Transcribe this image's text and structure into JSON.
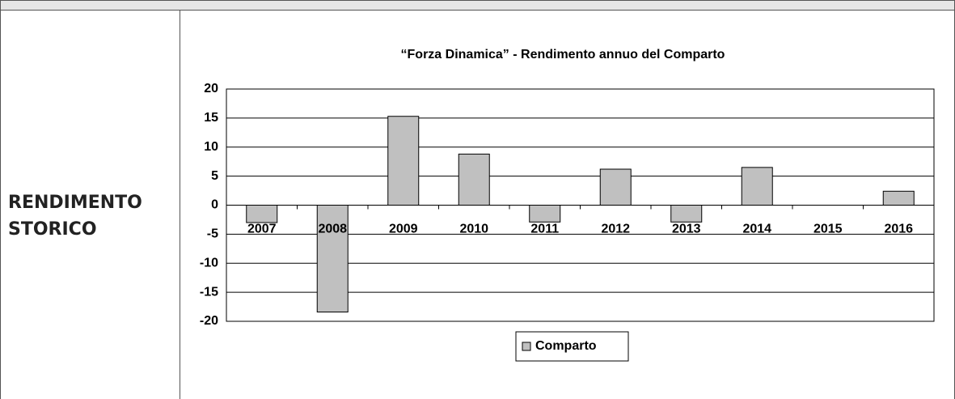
{
  "section_label": "RENDIMENTO STORICO",
  "chart_data": {
    "type": "bar",
    "title": "“Forza Dinamica” - Rendimento annuo del Comparto",
    "categories": [
      "2007",
      "2008",
      "2009",
      "2010",
      "2011",
      "2012",
      "2013",
      "2014",
      "2015",
      "2016"
    ],
    "series": [
      {
        "name": "Comparto",
        "color": "#c0c0c0",
        "values": [
          -3,
          -18.4,
          15.3,
          8.8,
          -2.9,
          6.2,
          -2.9,
          6.5,
          0,
          2.4
        ]
      }
    ],
    "ylim": [
      -20,
      20
    ],
    "yticks": [
      -20,
      -15,
      -10,
      -5,
      0,
      5,
      10,
      15,
      20
    ],
    "grid": true,
    "legend": "bottom"
  }
}
